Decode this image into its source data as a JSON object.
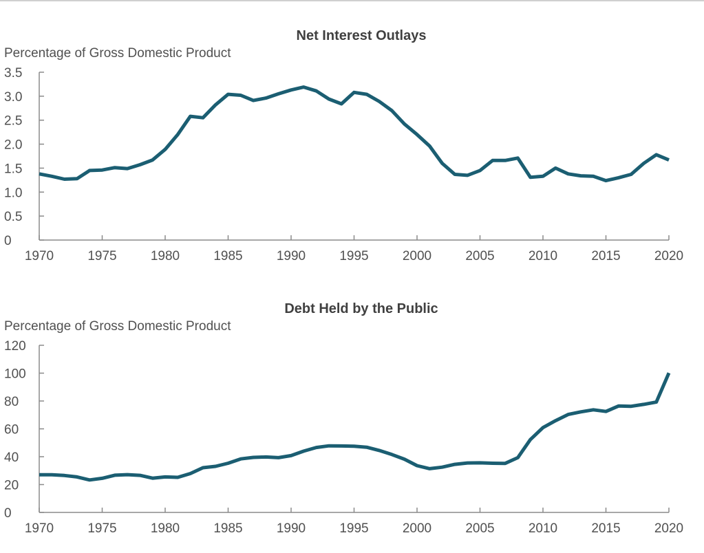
{
  "chart_data": [
    {
      "type": "line",
      "title": "Net Interest Outlays",
      "ylabel": "Percentage of Gross Domestic Product",
      "xlabel": "",
      "ylim": [
        0,
        3.5
      ],
      "xlim": [
        1970,
        2020
      ],
      "yticks": [
        "0",
        "0.5",
        "1.0",
        "1.5",
        "2.0",
        "2.5",
        "3.0",
        "3.5"
      ],
      "ytick_values": [
        0,
        0.5,
        1.0,
        1.5,
        2.0,
        2.5,
        3.0,
        3.5
      ],
      "xticks": [
        "1970",
        "1975",
        "1980",
        "1985",
        "1990",
        "1995",
        "2000",
        "2005",
        "2010",
        "2015",
        "2020"
      ],
      "xtick_values": [
        1970,
        1975,
        1980,
        1985,
        1990,
        1995,
        2000,
        2005,
        2010,
        2015,
        2020
      ],
      "grid": false,
      "color": "#1b5e72",
      "series": [
        {
          "name": "Net Interest Outlays",
          "x": [
            1970,
            1971,
            1972,
            1973,
            1974,
            1975,
            1976,
            1977,
            1978,
            1979,
            1980,
            1981,
            1982,
            1983,
            1984,
            1985,
            1986,
            1987,
            1988,
            1989,
            1990,
            1991,
            1992,
            1993,
            1994,
            1995,
            1996,
            1997,
            1998,
            1999,
            2000,
            2001,
            2002,
            2003,
            2004,
            2005,
            2006,
            2007,
            2008,
            2009,
            2010,
            2011,
            2012,
            2013,
            2014,
            2015,
            2016,
            2017,
            2018,
            2019,
            2020
          ],
          "values": [
            1.38,
            1.33,
            1.27,
            1.28,
            1.45,
            1.46,
            1.51,
            1.49,
            1.57,
            1.67,
            1.89,
            2.2,
            2.58,
            2.55,
            2.82,
            3.04,
            3.02,
            2.91,
            2.96,
            3.05,
            3.13,
            3.19,
            3.11,
            2.94,
            2.84,
            3.08,
            3.04,
            2.89,
            2.7,
            2.42,
            2.2,
            1.96,
            1.6,
            1.37,
            1.35,
            1.45,
            1.66,
            1.66,
            1.71,
            1.31,
            1.33,
            1.5,
            1.38,
            1.34,
            1.33,
            1.24,
            1.3,
            1.37,
            1.6,
            1.78,
            1.67
          ]
        }
      ]
    },
    {
      "type": "line",
      "title": "Debt Held by the Public",
      "ylabel": "Percentage of Gross Domestic Product",
      "xlabel": "",
      "ylim": [
        0,
        120
      ],
      "xlim": [
        1970,
        2020
      ],
      "yticks": [
        "0",
        "20",
        "40",
        "60",
        "80",
        "100",
        "120"
      ],
      "ytick_values": [
        0,
        20,
        40,
        60,
        80,
        100,
        120
      ],
      "xticks": [
        "1970",
        "1975",
        "1980",
        "1985",
        "1990",
        "1995",
        "2000",
        "2005",
        "2010",
        "2015",
        "2020"
      ],
      "xtick_values": [
        1970,
        1975,
        1980,
        1985,
        1990,
        1995,
        2000,
        2005,
        2010,
        2015,
        2020
      ],
      "grid": false,
      "color": "#1b5e72",
      "series": [
        {
          "name": "Debt Held by the Public",
          "x": [
            1970,
            1971,
            1972,
            1973,
            1974,
            1975,
            1976,
            1977,
            1978,
            1979,
            1980,
            1981,
            1982,
            1983,
            1984,
            1985,
            1986,
            1987,
            1988,
            1989,
            1990,
            1991,
            1992,
            1993,
            1994,
            1995,
            1996,
            1997,
            1998,
            1999,
            2000,
            2001,
            2002,
            2003,
            2004,
            2005,
            2006,
            2007,
            2008,
            2009,
            2010,
            2011,
            2012,
            2013,
            2014,
            2015,
            2016,
            2017,
            2018,
            2019,
            2020
          ],
          "values": [
            27,
            27,
            26.5,
            25.5,
            23.3,
            24.5,
            26.7,
            27.1,
            26.6,
            24.6,
            25.5,
            25.2,
            27.9,
            32.1,
            33.1,
            35.3,
            38.4,
            39.5,
            39.8,
            39.3,
            40.8,
            44,
            46.6,
            47.8,
            47.7,
            47.5,
            46.8,
            44.5,
            41.6,
            38.2,
            33.6,
            31.4,
            32.5,
            34.5,
            35.5,
            35.6,
            35.3,
            35.2,
            39.3,
            52.3,
            60.9,
            65.9,
            70.3,
            72.2,
            73.7,
            72.5,
            76.4,
            76.2,
            77.6,
            79.2,
            100.1
          ]
        }
      ]
    }
  ]
}
